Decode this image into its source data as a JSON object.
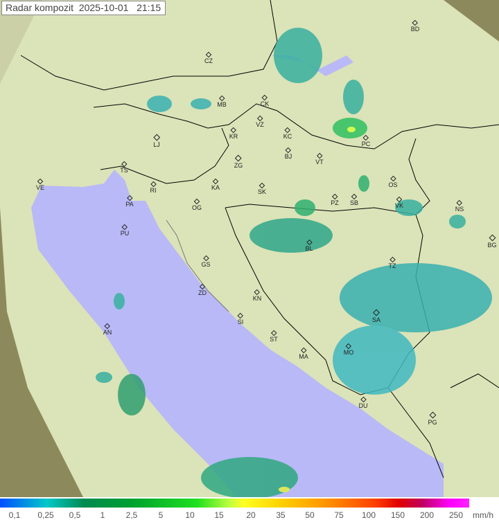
{
  "title": "Radar kompozit  2025-10-01   21:15",
  "colors": {
    "sea": "#b9b9f7",
    "land": "#dfe8bd",
    "outside": "#8c8a5c",
    "border": "#000000"
  },
  "cities": [
    {
      "code": "CZ"
    },
    {
      "code": "BD"
    },
    {
      "code": "MB"
    },
    {
      "code": "CK"
    },
    {
      "code": "VZ"
    },
    {
      "code": "KR"
    },
    {
      "code": "KC"
    },
    {
      "code": "LJ"
    },
    {
      "code": "PC"
    },
    {
      "code": "ZG"
    },
    {
      "code": "BJ"
    },
    {
      "code": "VT"
    },
    {
      "code": "TS"
    },
    {
      "code": "OS"
    },
    {
      "code": "VE"
    },
    {
      "code": "RI"
    },
    {
      "code": "KA"
    },
    {
      "code": "SK"
    },
    {
      "code": "PA"
    },
    {
      "code": "OG"
    },
    {
      "code": "PZ"
    },
    {
      "code": "SB"
    },
    {
      "code": "VK"
    },
    {
      "code": "NS"
    },
    {
      "code": "PU"
    },
    {
      "code": "BL"
    },
    {
      "code": "BG"
    },
    {
      "code": "GS"
    },
    {
      "code": "TZ"
    },
    {
      "code": "ZD"
    },
    {
      "code": "KN"
    },
    {
      "code": "SA"
    },
    {
      "code": "SI"
    },
    {
      "code": "AN"
    },
    {
      "code": "ST"
    },
    {
      "code": "MA"
    },
    {
      "code": "MO"
    },
    {
      "code": "DU"
    },
    {
      "code": "PG"
    }
  ],
  "legend": {
    "labels": [
      "0,1",
      "0,25",
      "0,5",
      "1",
      "2,5",
      "5",
      "10",
      "15",
      "20",
      "35",
      "50",
      "75",
      "100",
      "150",
      "200",
      "250"
    ],
    "unit": "mm/h"
  }
}
